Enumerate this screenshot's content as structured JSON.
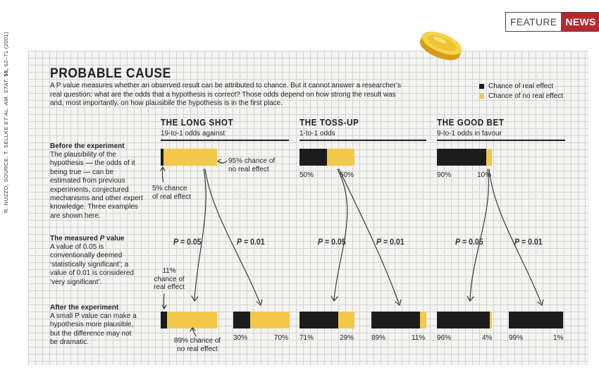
{
  "badge": {
    "feature": "FEATURE",
    "news": "NEWS"
  },
  "credit": {
    "prefix": "R. NUZZO; SOURCE: T. SELLKE ",
    "journal": "ET AL. AM. STAT.",
    "volume": " 55,",
    "pages": " 62–71 (2001)"
  },
  "title": "PROBABLE CAUSE",
  "intro": "A P value measures whether an observed result can be attributed to chance. But it cannot answer a researcher’s real question: what are the odds that a hypothesis is correct? Those odds depend on how strong the result was and, most importantly, on how plausibile the hypothesis is in the first place.",
  "legend": {
    "real": "Chance of real effect",
    "noreal": "Chance of no real effect"
  },
  "colors": {
    "real": "#1c1c1c",
    "noreal": "#f2c84b",
    "news": "#b5282e",
    "grid_bg": "#f4f4f2",
    "grid_line": "#d3d3d1"
  },
  "columns": [
    {
      "title": "THE LONG SHOT",
      "subtitle": "19-to-1 odds against"
    },
    {
      "title": "THE TOSS-UP",
      "subtitle": "1-to-1 odds"
    },
    {
      "title": "THE GOOD BET",
      "subtitle": "9-to-1 odds in favour"
    }
  ],
  "rows": {
    "before": {
      "heading": "Before the experiment",
      "text": "The plausibility of the hypothesis — the odds of it being true — can be estimated from previous experiments, conjectured mechanisms and other expert knowledge. Three examples are shown here."
    },
    "measured": {
      "heading": "The measured P value",
      "text": "A value of 0.05 is conventionally deemed ‘statistically significant’; a value of 0.01 is considered ‘very significant’."
    },
    "after": {
      "heading": "After the experiment",
      "text": "A small P value can make a hypothesis more plausible, but the difference may not be dramatic."
    }
  },
  "pvalues": {
    "p05": "= 0.05",
    "p01": "= 0.01",
    "p_letter": "P"
  },
  "before_bars": [
    {
      "real": 5,
      "noreal": 95,
      "label_real": "",
      "label_noreal": ""
    },
    {
      "real": 50,
      "noreal": 50,
      "label_real": "50%",
      "label_noreal": "50%"
    },
    {
      "real": 90,
      "noreal": 10,
      "label_real": "90%",
      "label_noreal": "10%"
    }
  ],
  "after_bars": [
    {
      "real": 11,
      "noreal": 89,
      "label_real": "",
      "label_noreal": ""
    },
    {
      "real": 30,
      "noreal": 70,
      "label_real": "30%",
      "label_noreal": "70%"
    },
    {
      "real": 71,
      "noreal": 29,
      "label_real": "71%",
      "label_noreal": "29%"
    },
    {
      "real": 89,
      "noreal": 11,
      "label_real": "89%",
      "label_noreal": "11%"
    },
    {
      "real": 96,
      "noreal": 4,
      "label_real": "96%",
      "label_noreal": "4%"
    },
    {
      "real": 99,
      "noreal": 1,
      "label_real": "99%",
      "label_noreal": "1%"
    }
  ],
  "annotations": {
    "before_noreal": "95% chance of no real effect",
    "before_real": "5% chance of real effect",
    "after_real": "11% chance of real effect",
    "after_noreal": "89% chance of no real effect"
  },
  "icons": {
    "coin": "gold-coin-icon",
    "arrow": "curved-arrow-icon"
  }
}
